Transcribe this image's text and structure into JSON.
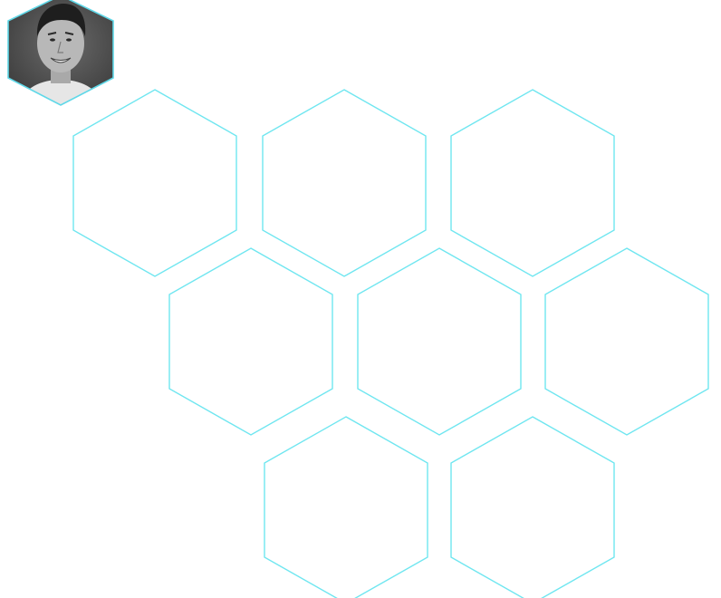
{
  "colors": {
    "background": "#ffffff",
    "hex_stroke": "#6fe6f0",
    "avatar_stroke": "#5fd8e8",
    "avatar_bg": "#6a6a6a",
    "avatar_bg_dark": "#3a3a3a",
    "avatar_skin": "#b8b8b8",
    "avatar_hair": "#1e1e1e",
    "avatar_shirt": "#e6e6e6"
  },
  "avatar": {
    "icon": "person-portrait-icon"
  },
  "hex_grid": {
    "tile_count": 8
  }
}
